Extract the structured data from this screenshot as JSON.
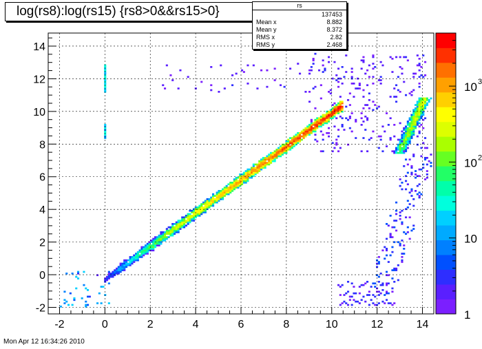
{
  "chart_data": {
    "type": "heatmap",
    "title": "log(rs8):log(rs15) {rs8>0&&rs15>0}",
    "xlabel": "",
    "ylabel": "",
    "xlim": [
      -2.5,
      14.5
    ],
    "ylim": [
      -2.4,
      14.8
    ],
    "x_ticks": [
      "-2",
      "0",
      "2",
      "4",
      "6",
      "8",
      "10",
      "12",
      "14"
    ],
    "y_ticks": [
      "-2",
      "0",
      "2",
      "4",
      "6",
      "8",
      "10",
      "12",
      "14"
    ],
    "grid": true,
    "color_scale": {
      "type": "log",
      "range": [
        1,
        5000
      ],
      "tick_labels": [
        "1",
        "10",
        "10",
        "10"
      ],
      "tick_exponents": [
        "",
        "",
        "2",
        "3"
      ],
      "palette": [
        "#7b1fff",
        "#5a1fff",
        "#2e2eff",
        "#0050ff",
        "#0080ff",
        "#00aaff",
        "#00d0ff",
        "#00ffdd",
        "#00ffaa",
        "#22ff66",
        "#66ff22",
        "#aaff00",
        "#ddff00",
        "#ffff00",
        "#ffd000",
        "#ffa000",
        "#ff7000",
        "#ff3000",
        "#ff0000"
      ]
    },
    "dense_regions": [
      {
        "name": "diagonal",
        "x": [
          0,
          10.5
        ],
        "y": [
          -0.3,
          10.4
        ],
        "peak_counts": 3000
      },
      {
        "name": "right-branch",
        "x": [
          13.0,
          14.1
        ],
        "y": [
          7.5,
          10.8
        ],
        "peak_counts": 300
      },
      {
        "name": "x0-column",
        "x": [
          0,
          0
        ],
        "y": [
          8.4,
          12.9
        ],
        "peak_counts": 30
      }
    ],
    "stats": {
      "name": "rs",
      "entries_label": "",
      "entries": "137453",
      "mean_x_label": "Mean x",
      "mean_x": "8.882",
      "mean_y_label": "Mean y",
      "mean_y": "8.372",
      "rms_x_label": "RMS x",
      "rms_x": "2.82",
      "rms_y_label": "RMS y",
      "rms_y": "2.468"
    }
  },
  "footer": "Mon Apr 12 16:34:26 2010"
}
